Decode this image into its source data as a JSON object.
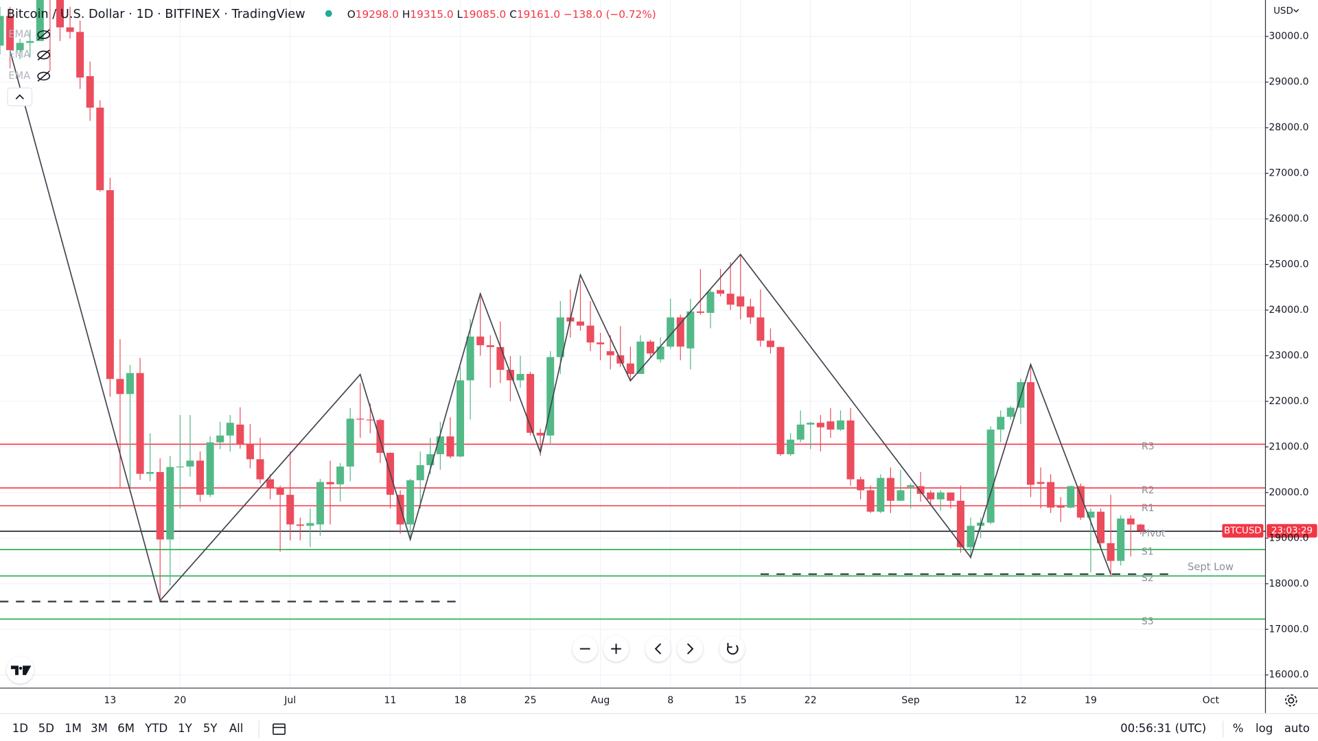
{
  "header": {
    "title": "Bitcoin / U.S. Dollar · 1D · BITFINEX · TradingView",
    "ohlc": [
      {
        "key": "O",
        "value": "19298.0"
      },
      {
        "key": "H",
        "value": "19315.0"
      },
      {
        "key": "L",
        "value": "19085.0"
      },
      {
        "key": "C",
        "value": "19161.0"
      }
    ],
    "change": "−138.0 (−0.72%)",
    "indicators": [
      "EMA",
      "EMA",
      "EMA"
    ],
    "currency": "USD"
  },
  "chart_data": {
    "type": "candlestick",
    "up_color": "#53b987",
    "down_color": "#eb4d5c",
    "grid": true,
    "x": [
      "Jun 2",
      "Jun 3",
      "Jun 4",
      "Jun 5",
      "Jun 6",
      "Jun 7",
      "Jun 8",
      "Jun 9",
      "Jun 10",
      "Jun 11",
      "Jun 12",
      "Jun 13",
      "Jun 14",
      "Jun 15",
      "Jun 16",
      "Jun 17",
      "Jun 18",
      "Jun 19",
      "Jun 20",
      "Jun 21",
      "Jun 22",
      "Jun 23",
      "Jun 24",
      "Jun 25",
      "Jun 26",
      "Jun 27",
      "Jun 28",
      "Jun 29",
      "Jun 30",
      "Jul 1",
      "Jul 2",
      "Jul 3",
      "Jul 4",
      "Jul 5",
      "Jul 6",
      "Jul 7",
      "Jul 8",
      "Jul 9",
      "Jul 10",
      "Jul 11",
      "Jul 12",
      "Jul 13",
      "Jul 14",
      "Jul 15",
      "Jul 16",
      "Jul 17",
      "Jul 18",
      "Jul 19",
      "Jul 20",
      "Jul 21",
      "Jul 22",
      "Jul 23",
      "Jul 24",
      "Jul 25",
      "Jul 26",
      "Jul 27",
      "Jul 28",
      "Jul 29",
      "Jul 30",
      "Jul 31",
      "Aug 1",
      "Aug 2",
      "Aug 3",
      "Aug 4",
      "Aug 5",
      "Aug 6",
      "Aug 7",
      "Aug 8",
      "Aug 9",
      "Aug 10",
      "Aug 11",
      "Aug 12",
      "Aug 13",
      "Aug 14",
      "Aug 15",
      "Aug 16",
      "Aug 17",
      "Aug 18",
      "Aug 19",
      "Aug 20",
      "Aug 21",
      "Aug 22",
      "Aug 23",
      "Aug 24",
      "Aug 25",
      "Aug 26",
      "Aug 27",
      "Aug 28",
      "Aug 29",
      "Aug 30",
      "Aug 31",
      "Sep 1",
      "Sep 2",
      "Sep 3",
      "Sep 4",
      "Sep 5",
      "Sep 6",
      "Sep 7",
      "Sep 8",
      "Sep 9",
      "Sep 10",
      "Sep 11",
      "Sep 12",
      "Sep 13",
      "Sep 14",
      "Sep 15",
      "Sep 16",
      "Sep 17",
      "Sep 18",
      "Sep 19",
      "Sep 20",
      "Sep 21",
      "Sep 22",
      "Sep 23",
      "Sep 24"
    ],
    "open": [
      29800,
      30450,
      29700,
      29860,
      29900,
      31370,
      31130,
      30200,
      30100,
      29130,
      28440,
      26630,
      22490,
      22160,
      22620,
      20410,
      20450,
      18970,
      20560,
      20570,
      20700,
      19950,
      21100,
      21250,
      21490,
      21060,
      20730,
      20290,
      20100,
      19950,
      19300,
      19270,
      19300,
      20230,
      20180,
      20570,
      21620,
      21600,
      21590,
      20870,
      19950,
      19300,
      20270,
      20600,
      20840,
      21230,
      20790,
      22460,
      23420,
      23230,
      23190,
      22690,
      22460,
      22600,
      21310,
      21250,
      22970,
      23840,
      23750,
      23660,
      23290,
      23100,
      23010,
      22830,
      22600,
      23310,
      22920,
      23200,
      23840,
      23160,
      23970,
      23940,
      24440,
      24360,
      24300,
      24080,
      23840,
      23330,
      23190,
      20840,
      21160,
      21490,
      21530,
      21560,
      21380,
      21580,
      20290,
      20050,
      19580,
      20320,
      19820,
      20120,
      20140,
      20000,
      19850,
      20000,
      19820,
      18800,
      19270,
      19340,
      21380,
      21660,
      21860,
      22420,
      20230,
      20230,
      19710,
      19670,
      20140,
      19450,
      19580,
      18890,
      18500,
      19430,
      19298
    ],
    "high": [
      30650,
      30650,
      29950,
      30150,
      31700,
      31550,
      31350,
      30650,
      30350,
      29450,
      28600,
      26900,
      23360,
      22800,
      22950,
      21300,
      20750,
      20800,
      21700,
      21700,
      20900,
      21230,
      21550,
      21700,
      21870,
      21500,
      21200,
      20400,
      20150,
      20900,
      19450,
      19650,
      20300,
      20700,
      20650,
      21850,
      22400,
      21950,
      21620,
      20880,
      20050,
      20300,
      20900,
      21200,
      21550,
      21650,
      22750,
      23800,
      24300,
      23450,
      23750,
      22990,
      23000,
      22650,
      21400,
      23100,
      24200,
      24450,
      24650,
      24200,
      23500,
      23450,
      23650,
      23200,
      23450,
      23350,
      23400,
      24250,
      23900,
      24250,
      24900,
      24450,
      24900,
      25050,
      25200,
      24250,
      24450,
      23600,
      23200,
      21300,
      21800,
      21550,
      21700,
      21850,
      21800,
      21850,
      20350,
      20150,
      20400,
      20550,
      20500,
      20200,
      20450,
      20050,
      20050,
      20000,
      20150,
      19450,
      19450,
      21450,
      21800,
      21900,
      22500,
      22800,
      20550,
      20400,
      19900,
      20150,
      20200,
      19650,
      19650,
      19950,
      19500,
      19500,
      19315
    ],
    "low": [
      29600,
      29300,
      29500,
      29550,
      29900,
      29250,
      29900,
      29950,
      28850,
      28150,
      26600,
      22100,
      20080,
      20100,
      20280,
      20250,
      17600,
      17960,
      19650,
      20350,
      19800,
      19900,
      20950,
      20900,
      20960,
      20530,
      20200,
      19850,
      18700,
      18950,
      18950,
      18800,
      19050,
      19300,
      19800,
      20250,
      21200,
      21300,
      20650,
      19650,
      19100,
      18950,
      19650,
      20400,
      20500,
      20750,
      20770,
      21600,
      23000,
      22300,
      22400,
      22000,
      22300,
      21250,
      20800,
      21050,
      22600,
      23400,
      23550,
      23100,
      22900,
      22700,
      22750,
      22450,
      22600,
      22950,
      22850,
      23150,
      22900,
      22700,
      23900,
      23600,
      24300,
      24000,
      23800,
      23700,
      23200,
      23050,
      20800,
      20800,
      21100,
      20950,
      20900,
      21200,
      21350,
      20150,
      19850,
      19550,
      19550,
      19550,
      19900,
      19650,
      19800,
      19700,
      19600,
      19650,
      18680,
      18550,
      19000,
      19300,
      21100,
      21600,
      21500,
      19900,
      19650,
      19550,
      19350,
      19650,
      19400,
      18250,
      18800,
      18150,
      18400,
      18600,
      19085
    ],
    "close": [
      30450,
      29700,
      29860,
      29900,
      31370,
      31130,
      30200,
      30100,
      29100,
      28440,
      26630,
      22490,
      22160,
      22620,
      20410,
      20450,
      18970,
      20560,
      20570,
      20700,
      19950,
      21100,
      21250,
      21530,
      21060,
      20730,
      20290,
      20100,
      19950,
      19300,
      19270,
      19330,
      20230,
      20180,
      20570,
      21620,
      21600,
      21590,
      20870,
      19950,
      19300,
      20270,
      20600,
      20840,
      21230,
      20790,
      22460,
      23420,
      23230,
      23190,
      22690,
      22460,
      22600,
      21310,
      21250,
      22970,
      23840,
      23750,
      23660,
      23290,
      23250,
      23010,
      22830,
      22600,
      23310,
      23050,
      23200,
      23840,
      23200,
      23970,
      23940,
      24400,
      24360,
      24120,
      24080,
      23840,
      23330,
      23190,
      20840,
      21160,
      21490,
      21530,
      21430,
      21380,
      21580,
      20290,
      20050,
      19580,
      20320,
      19820,
      20050,
      20160,
      19970,
      19850,
      20000,
      19820,
      18800,
      19270,
      19340,
      21380,
      21660,
      21860,
      22420,
      20170,
      20190,
      19670,
      19670,
      20140,
      19450,
      19580,
      18890,
      18500,
      19430,
      19300,
      19161
    ],
    "xlim": [
      "Jun 2",
      "Oct 6"
    ],
    "xticks": [
      {
        "value": "Jun 13",
        "label": "13"
      },
      {
        "value": "Jun 20",
        "label": "20"
      },
      {
        "value": "Jul 1",
        "label": "Jul"
      },
      {
        "value": "Jul 11",
        "label": "11"
      },
      {
        "value": "Jul 18",
        "label": "18"
      },
      {
        "value": "Jul 25",
        "label": "25"
      },
      {
        "value": "Aug 1",
        "label": "Aug"
      },
      {
        "value": "Aug 8",
        "label": "8"
      },
      {
        "value": "Aug 15",
        "label": "15"
      },
      {
        "value": "Aug 22",
        "label": "22"
      },
      {
        "value": "Sep 1",
        "label": "Sep"
      },
      {
        "value": "Sep 12",
        "label": "12"
      },
      {
        "value": "Sep 19",
        "label": "19"
      },
      {
        "value": "Oct 1",
        "label": "Oct"
      }
    ],
    "ylim": [
      15720,
      30800
    ],
    "yticks": [
      {
        "value": 16000,
        "label": "16000.0"
      },
      {
        "value": 17000,
        "label": "17000.0"
      },
      {
        "value": 18000,
        "label": "18000.0"
      },
      {
        "value": 19000,
        "label": "19000.0"
      },
      {
        "value": 20000,
        "label": "20000.0"
      },
      {
        "value": 21000,
        "label": "21000.0"
      },
      {
        "value": 22000,
        "label": "22000.0"
      },
      {
        "value": 23000,
        "label": "23000.0"
      },
      {
        "value": 24000,
        "label": "24000.0"
      },
      {
        "value": 25000,
        "label": "25000.0"
      },
      {
        "value": 26000,
        "label": "26000.0"
      },
      {
        "value": 27000,
        "label": "27000.0"
      },
      {
        "value": 28000,
        "label": "28000.0"
      },
      {
        "value": 29000,
        "label": "29000.0"
      },
      {
        "value": 30000,
        "label": "30000.0"
      }
    ],
    "levels": [
      {
        "name": "R3",
        "value": 21060,
        "color": "#f23645"
      },
      {
        "name": "R2",
        "value": 20100,
        "color": "#f23645"
      },
      {
        "name": "R1",
        "value": 19710,
        "color": "#f23645"
      },
      {
        "name": "Pivot",
        "value": 19150,
        "color": "#131722"
      },
      {
        "name": "S1",
        "value": 18750,
        "color": "#22ab4c"
      },
      {
        "name": "S2",
        "value": 18170,
        "color": "#22ab4c"
      },
      {
        "name": "S3",
        "value": 17225,
        "color": "#22ab4c"
      }
    ],
    "lows": [
      {
        "label": "Sept Low",
        "value": 18210,
        "from": "Aug 17",
        "to": "Sep 27"
      },
      {
        "value": 17610,
        "from": "Jun 2",
        "to": "Jul 18"
      }
    ],
    "zigzag": {
      "x": [
        "Jun 3",
        "Jun 18",
        "Jul 8",
        "Jul 13",
        "Jul 20",
        "Jul 26",
        "Jul 30",
        "Aug 4",
        "Aug 15",
        "Sep 7",
        "Sep 13",
        "Sep 21"
      ],
      "y": [
        29685,
        17630,
        22590,
        18970,
        24360,
        20880,
        24770,
        22450,
        25220,
        18580,
        22810,
        18210
      ]
    },
    "price_label": {
      "symbol": "BTCUSD",
      "countdown": "23:03:29"
    }
  },
  "toolbar": {
    "ranges": [
      "1D",
      "5D",
      "1M",
      "3M",
      "6M",
      "YTD",
      "1Y",
      "5Y",
      "All"
    ],
    "clock": "00:56:31 (UTC)",
    "percent": "%",
    "log": "log",
    "auto": "auto"
  }
}
